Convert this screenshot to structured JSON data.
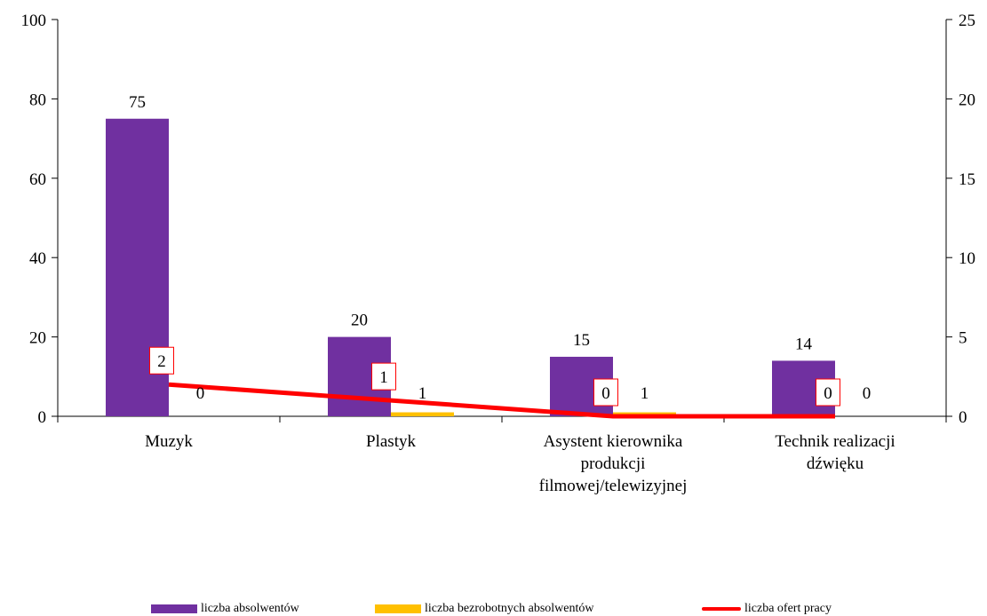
{
  "chart_data": {
    "type": "bar",
    "categories": [
      [
        "Muzyk"
      ],
      [
        "Plastyk"
      ],
      [
        "Asystent kierownika",
        "produkcji",
        "filmowej/telewizyjnej"
      ],
      [
        "Technik realizacji",
        "dźwięku"
      ]
    ],
    "series": [
      {
        "name": "liczba absolwentów",
        "values": [
          75,
          20,
          15,
          14
        ],
        "color": "#7030A0",
        "axis": "left",
        "kind": "bar"
      },
      {
        "name": "liczba bezrobotnych absolwentów",
        "values": [
          0,
          1,
          1,
          0
        ],
        "color": "#FFC000",
        "axis": "left",
        "kind": "bar"
      },
      {
        "name": "liczba ofert pracy",
        "values": [
          2,
          1,
          0,
          0
        ],
        "color": "#FF0000",
        "axis": "right",
        "kind": "line"
      }
    ],
    "ylim_left": [
      0,
      100
    ],
    "yticks_left": [
      0,
      20,
      40,
      60,
      80,
      100
    ],
    "ylim_right": [
      0,
      25
    ],
    "yticks_right": [
      0,
      5,
      10,
      15,
      20,
      25
    ],
    "grid": false,
    "legend_position": "bottom"
  }
}
